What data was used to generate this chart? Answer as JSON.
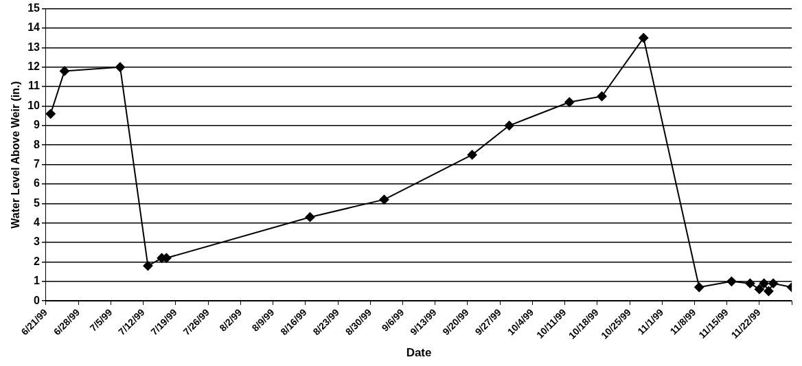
{
  "chart_data": {
    "type": "line",
    "xlabel": "Date",
    "ylabel": "Water Level Above Weir (in.)",
    "x": [
      "1999-06-22",
      "1999-06-25",
      "1999-07-07",
      "1999-07-13",
      "1999-07-16",
      "1999-07-17",
      "1999-08-17",
      "1999-09-02",
      "1999-09-21",
      "1999-09-29",
      "1999-10-12",
      "1999-10-19",
      "1999-10-28",
      "1999-11-09",
      "1999-11-16",
      "1999-11-20",
      "1999-11-22",
      "1999-11-23",
      "1999-11-24",
      "1999-11-25",
      "1999-11-29"
    ],
    "series": [
      {
        "color": "#000000",
        "values": [
          9.6,
          11.8,
          12.0,
          1.8,
          2.2,
          2.2,
          4.3,
          5.2,
          7.5,
          9.0,
          10.2,
          10.5,
          13.5,
          0.7,
          1.0,
          0.9,
          0.6,
          0.9,
          0.5,
          0.9,
          0.7
        ]
      }
    ],
    "xlim": [
      "1999-06-21",
      "1999-11-29"
    ],
    "xticks": [
      {
        "value": "1999-06-21",
        "label": "6/21/99"
      },
      {
        "value": "1999-06-28",
        "label": "6/28/99"
      },
      {
        "value": "1999-07-05",
        "label": "7/5/99"
      },
      {
        "value": "1999-07-12",
        "label": "7/12/99"
      },
      {
        "value": "1999-07-19",
        "label": "7/19/99"
      },
      {
        "value": "1999-07-26",
        "label": "7/26/99"
      },
      {
        "value": "1999-08-02",
        "label": "8/2/99"
      },
      {
        "value": "1999-08-09",
        "label": "8/9/99"
      },
      {
        "value": "1999-08-16",
        "label": "8/16/99"
      },
      {
        "value": "1999-08-23",
        "label": "8/23/99"
      },
      {
        "value": "1999-08-30",
        "label": "8/30/99"
      },
      {
        "value": "1999-09-06",
        "label": "9/6/99"
      },
      {
        "value": "1999-09-13",
        "label": "9/13/99"
      },
      {
        "value": "1999-09-20",
        "label": "9/20/99"
      },
      {
        "value": "1999-09-27",
        "label": "9/27/99"
      },
      {
        "value": "1999-10-04",
        "label": "10/4/99"
      },
      {
        "value": "1999-10-11",
        "label": "10/11/99"
      },
      {
        "value": "1999-10-18",
        "label": "10/18/99"
      },
      {
        "value": "1999-10-25",
        "label": "10/25/99"
      },
      {
        "value": "1999-11-01",
        "label": "11/1/99"
      },
      {
        "value": "1999-11-08",
        "label": "11/8/99"
      },
      {
        "value": "1999-11-15",
        "label": "11/15/99"
      },
      {
        "value": "1999-11-22",
        "label": "11/22/99"
      },
      {
        "value": "1999-11-29",
        "label": null
      }
    ],
    "ylim": [
      0,
      15
    ],
    "yticks": [
      0,
      1,
      2,
      3,
      4,
      5,
      6,
      7,
      8,
      9,
      10,
      11,
      12,
      13,
      14,
      15
    ],
    "grid": "y",
    "legend": false,
    "marker": "diamond",
    "line_style": "solid"
  }
}
